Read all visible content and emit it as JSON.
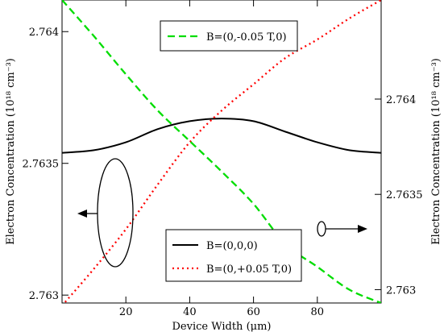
{
  "chart_data": {
    "type": "line",
    "x": {
      "label": "Device Width (μm)",
      "range": [
        0,
        100
      ],
      "ticks": [
        20,
        40,
        60,
        80
      ],
      "tick_labels": [
        "20",
        "40",
        "60",
        "80"
      ]
    },
    "y_left": {
      "label": "Electron Concentration (10¹⁸ cm⁻³)",
      "range": [
        2.76297,
        2.76412
      ],
      "ticks": [
        2.763,
        2.7635,
        2.764
      ],
      "tick_labels": [
        "2.763",
        "2.7635",
        "2.764"
      ]
    },
    "y_right": {
      "label": "Electron Concentration (10¹⁸ cm⁻³)",
      "range": [
        2.76293,
        2.76452
      ],
      "ticks": [
        2.763,
        2.7635,
        2.764
      ],
      "tick_labels": [
        "2.763",
        "2.7635",
        "2.764"
      ]
    },
    "series": [
      {
        "name": "B=(0,0,0)",
        "axis": "left",
        "color": "#000000",
        "dash": "solid",
        "x": [
          0,
          10,
          20,
          30,
          40,
          50,
          60,
          70,
          80,
          90,
          100
        ],
        "y": [
          2.76354,
          2.76355,
          2.76358,
          2.76363,
          2.76366,
          2.76367,
          2.76366,
          2.76362,
          2.76358,
          2.76355,
          2.76354
        ]
      },
      {
        "name": "B=(0,+0.05 T,0)",
        "axis": "left",
        "color": "#ff0000",
        "dash": "dotted",
        "x": [
          0,
          10,
          20,
          30,
          40,
          50,
          60,
          70,
          80,
          90,
          100
        ],
        "y": [
          2.76296,
          2.7631,
          2.76325,
          2.76342,
          2.76358,
          2.7637,
          2.7638,
          2.7639,
          2.76397,
          2.76405,
          2.76412
        ]
      },
      {
        "name": "B=(0,-0.05 T,0)",
        "axis": "right",
        "color": "#00dd00",
        "dash": "dashed",
        "x": [
          0,
          10,
          20,
          30,
          40,
          50,
          60,
          70,
          80,
          90,
          100
        ],
        "y": [
          2.76452,
          2.76433,
          2.76413,
          2.76394,
          2.76378,
          2.76362,
          2.76345,
          2.76324,
          2.76312,
          2.763,
          2.76293
        ]
      }
    ],
    "legends": [
      {
        "position": "top-center",
        "entries": [
          "B=(0,-0.05 T,0)"
        ]
      },
      {
        "position": "bottom-right",
        "entries": [
          "B=(0,0,0)",
          "B=(0,+0.05 T,0)"
        ]
      }
    ],
    "annotations": [
      {
        "type": "ellipse-arrow",
        "points_to": "left axis",
        "series": "B=(0,0,0) and B=(0,+0.05 T,0)"
      },
      {
        "type": "ellipse-arrow",
        "points_to": "right axis",
        "series": "B=(0,-0.05 T,0)"
      }
    ],
    "grid": false
  }
}
